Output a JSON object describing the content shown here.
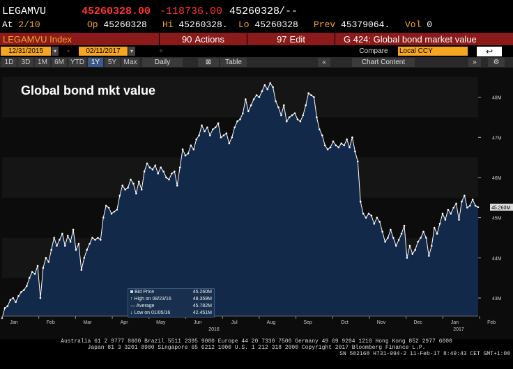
{
  "quote": {
    "ticker": "LEGAMVU",
    "last": "45260328.00",
    "change": "-118736.00",
    "last2": "45260328",
    "arrows": "/--",
    "at_label": "At",
    "at": "2/10",
    "op_label": "Op",
    "op": "45260328",
    "hi_label": "Hi",
    "hi": "45260328.",
    "lo_label": "Lo",
    "lo": "45260328",
    "prev_label": "Prev",
    "prev": "45379064.",
    "vol_label": "Vol",
    "vol": "0"
  },
  "header": {
    "index": "LEGAMVU Index",
    "actions": "Actions",
    "actions_num": "90",
    "edit": "Edit",
    "edit_num": "97",
    "gtitle": "G 424: Global bond market value"
  },
  "toolbar": {
    "start": "12/31/2015",
    "end": "02/11/2017",
    "compare_label": "Compare",
    "compare_val": "Local CCY",
    "periods": [
      "1D",
      "3D",
      "1M",
      "6M",
      "YTD",
      "1Y",
      "5Y",
      "Max"
    ],
    "active_period": "1Y",
    "freq": "Daily",
    "table": "Table",
    "chart_content": "Chart Content"
  },
  "chart_data": {
    "type": "line",
    "title": "Global bond mkt value",
    "ylim": [
      42.55,
      48.6
    ],
    "yticks": [
      "48M",
      "47M",
      "46M",
      "45M",
      "44M",
      "43M"
    ],
    "ytick_vals": [
      48,
      47,
      46,
      45,
      44,
      43
    ],
    "last_label": "45.260M",
    "months": [
      "Jan",
      "Feb",
      "Mar",
      "Apr",
      "May",
      "Jun",
      "Jul",
      "Aug",
      "Sep",
      "Oct",
      "Nov",
      "Dec",
      "Jan",
      "Feb"
    ],
    "year_labels": [
      "2016",
      "2017"
    ],
    "values": [
      42.5,
      42.75,
      42.8,
      42.95,
      43.0,
      42.9,
      43.05,
      43.15,
      43.2,
      43.3,
      43.5,
      43.65,
      43.6,
      43.8,
      43.0,
      43.75,
      44.0,
      43.9,
      44.2,
      44.5,
      44.3,
      44.45,
      44.6,
      44.3,
      44.55,
      44.4,
      44.7,
      44.2,
      44.35,
      43.7,
      44.0,
      44.2,
      44.35,
      44.5,
      44.45,
      44.5,
      44.45,
      45.0,
      45.3,
      45.25,
      45.1,
      45.15,
      45.2,
      45.55,
      45.8,
      45.7,
      45.75,
      45.95,
      45.85,
      45.6,
      45.9,
      45.7,
      46.15,
      46.35,
      46.25,
      46.2,
      46.3,
      46.1,
      46.25,
      46.15,
      46.0,
      45.95,
      46.1,
      46.15,
      45.8,
      46.25,
      46.7,
      46.55,
      46.6,
      46.8,
      46.7,
      46.95,
      47.05,
      47.3,
      47.15,
      47.25,
      47.05,
      47.2,
      47.25,
      47.35,
      47.0,
      47.05,
      47.1,
      46.85,
      47.0,
      47.25,
      47.4,
      47.45,
      47.6,
      47.95,
      47.65,
      47.8,
      47.95,
      48.05,
      48.0,
      48.15,
      48.3,
      48.2,
      48.35,
      48.25,
      47.9,
      47.75,
      47.55,
      47.8,
      47.4,
      47.5,
      47.55,
      47.6,
      47.45,
      47.4,
      47.55,
      47.8,
      48.1,
      48.05,
      48.0,
      47.5,
      47.2,
      47.05,
      46.8,
      46.7,
      46.75,
      46.9,
      46.8,
      46.75,
      46.85,
      46.8,
      46.95,
      46.75,
      47.0,
      46.65,
      46.4,
      45.4,
      45.1,
      45.0,
      45.1,
      45.05,
      44.85,
      45.0,
      44.9,
      44.65,
      44.4,
      44.5,
      44.7,
      44.5,
      44.3,
      44.45,
      44.6,
      44.8,
      44.0,
      44.3,
      44.1,
      44.2,
      44.4,
      44.5,
      44.65,
      44.5,
      44.05,
      44.3,
      44.75,
      44.6,
      44.85,
      45.1,
      44.95,
      45.2,
      45.1,
      45.25,
      45.35,
      44.95,
      45.4,
      45.55,
      45.25,
      45.3,
      45.45,
      45.3,
      45.26
    ],
    "legend": [
      {
        "label": "Bid Price",
        "value": "45.260M"
      },
      {
        "label": "High on 08/23/16",
        "value": "48.359M"
      },
      {
        "label": "Average",
        "value": "45.782M"
      },
      {
        "label": "Low on 01/05/16",
        "value": "42.451M"
      }
    ]
  },
  "footer": {
    "line1": "Australia 61 2 9777 8600 Brazil 5511 2395 9000 Europe 44 20 7330 7500 Germany 49 69 9204 1210 Hong Kong 852 2977 6000",
    "line2": "Japan 81 3 3201 8900       Singapore 65 6212 1000       U.S. 1 212 318 2000            Copyright 2017 Bloomberg Finance L.P.",
    "line3": "SN 502168 H731-994-2 11-Feb-17  8:49:43 CET  GMT+1:00"
  },
  "colors": {
    "orange": "#f5a623",
    "red": "#ff3333",
    "hdr": "#8b1a1a",
    "area": "#0f2a4a"
  }
}
